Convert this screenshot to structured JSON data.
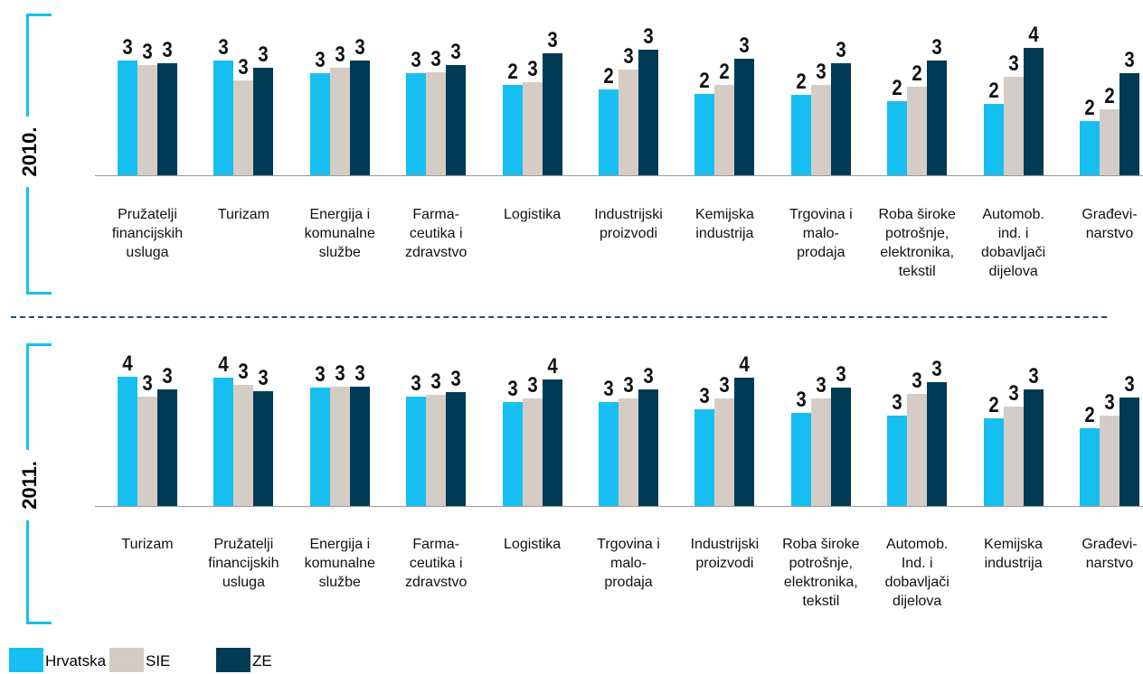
{
  "chart_data": [
    {
      "type": "bar",
      "title": "2010.",
      "ylim": [
        0,
        4
      ],
      "categories": [
        "Pružatelji\nfinancijskih\nusluga",
        "Turizam",
        "Energija i\nkomunalne\nslužbe",
        "Farma-\nceutika i\nzdravstvo",
        "Logistika",
        "Industrijski\nproizvodi",
        "Kemijska\nindustrija",
        "Trgovina i\nmalo-\nprodaja",
        "Roba široke\npotrošnje,\nelektronika,\ntekstil",
        "Automob.\nind. i\ndobavljači\ndijelova",
        "Građevi-\nnarstvo"
      ],
      "series": [
        {
          "name": "Hrvatska",
          "color": "#17bff0",
          "values": [
            3.18,
            3.18,
            2.83,
            2.83,
            2.49,
            2.38,
            2.25,
            2.23,
            2.05,
            1.98,
            1.5
          ],
          "value_labels": [
            "3",
            "3",
            "3",
            "3",
            "2",
            "2",
            "2",
            "2",
            "2",
            "2",
            "2"
          ]
        },
        {
          "name": "SIE",
          "color": "#d5cdc5",
          "values": [
            3.05,
            2.62,
            2.98,
            2.85,
            2.58,
            2.93,
            2.49,
            2.5,
            2.45,
            2.73,
            1.83
          ],
          "value_labels": [
            "3",
            "3",
            "3",
            "3",
            "3",
            "3",
            "2",
            "3",
            "2",
            "3",
            "2"
          ]
        },
        {
          "name": "ZE",
          "color": "#003a55",
          "values": [
            3.1,
            2.98,
            3.18,
            3.05,
            3.38,
            3.48,
            3.23,
            3.1,
            3.18,
            3.53,
            2.83
          ],
          "value_labels": [
            "3",
            "3",
            "3",
            "3",
            "3",
            "3",
            "3",
            "3",
            "3",
            "4",
            "3"
          ]
        }
      ]
    },
    {
      "type": "bar",
      "title": "2011.",
      "ylim": [
        0,
        4
      ],
      "categories": [
        "Turizam",
        "Pružatelji\nfinancijskih\nusluga",
        "Energija i\nkomunalne\nslužbe",
        "Farma-\nceutika i\nzdravstvo",
        "Logistika",
        "Trgovina i\nmalo-\nprodaja",
        "Industrijski\nproizvodi",
        "Roba široke\npotrošnje,\nelektronika,\ntekstil",
        "Automob.\nInd. i\ndobavljači\ndijelova",
        "Kemijska\nindustrija",
        "Građevi-\nnarstvo"
      ],
      "series": [
        {
          "name": "Hrvatska",
          "color": "#17bff0",
          "values": [
            3.58,
            3.55,
            3.28,
            3.03,
            2.88,
            2.88,
            2.68,
            2.58,
            2.5,
            2.43,
            2.15
          ],
          "value_labels": [
            "4",
            "4",
            "3",
            "3",
            "3",
            "3",
            "3",
            "3",
            "3",
            "2",
            "2"
          ]
        },
        {
          "name": "SIE",
          "color": "#d5cdc5",
          "values": [
            3.03,
            3.35,
            3.3,
            3.08,
            2.98,
            2.98,
            2.98,
            2.98,
            3.1,
            2.75,
            2.5
          ],
          "value_labels": [
            "3",
            "3",
            "3",
            "3",
            "3",
            "3",
            "3",
            "3",
            "3",
            "3",
            "3"
          ]
        },
        {
          "name": "ZE",
          "color": "#003a55",
          "values": [
            3.23,
            3.18,
            3.3,
            3.15,
            3.5,
            3.23,
            3.55,
            3.28,
            3.43,
            3.23,
            3.0
          ],
          "value_labels": [
            "3",
            "3",
            "3",
            "3",
            "4",
            "3",
            "4",
            "3",
            "3",
            "3",
            "3"
          ]
        }
      ]
    }
  ]
}
